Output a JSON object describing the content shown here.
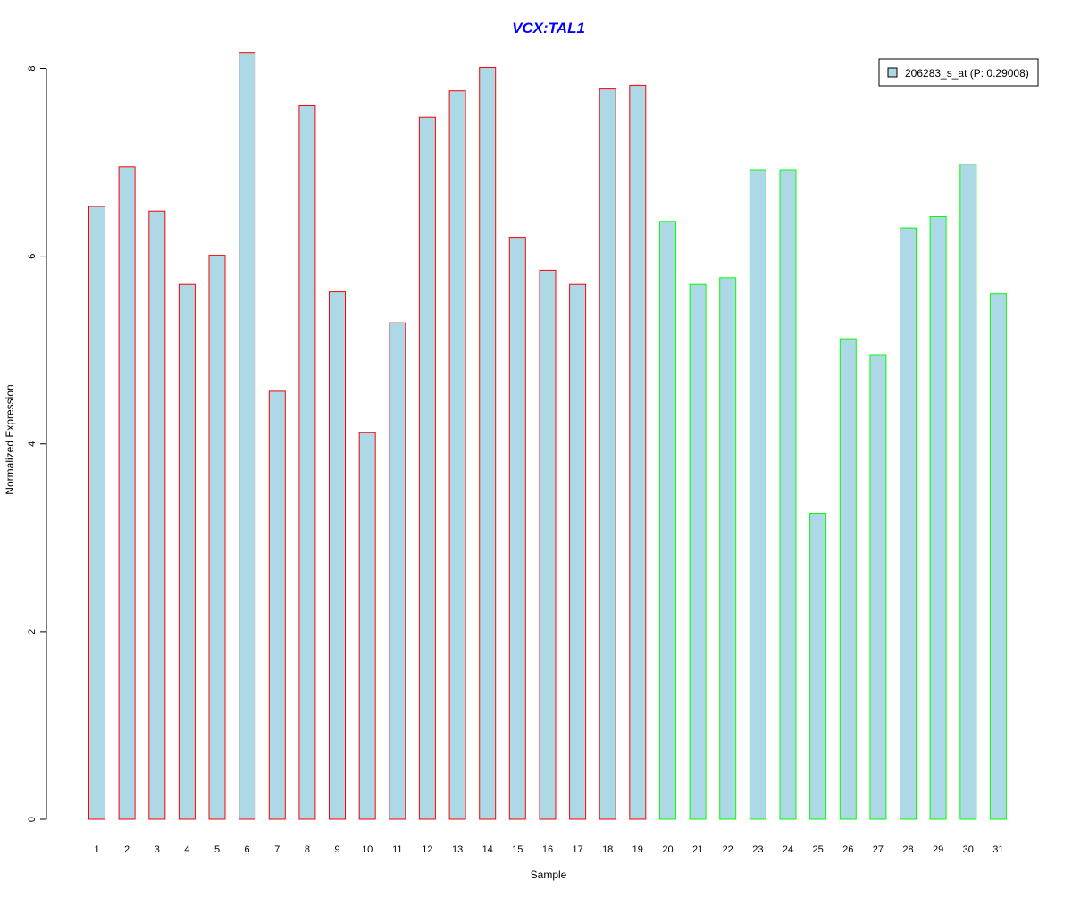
{
  "chart_data": {
    "type": "bar",
    "title": "VCX:TAL1",
    "xlabel": "Sample",
    "ylabel": "Normalized Expression",
    "ylim": [
      0,
      8.2
    ],
    "yticks": [
      "0",
      "2",
      "4",
      "6",
      "8"
    ],
    "ytick_values": [
      0,
      2,
      4,
      6,
      8
    ],
    "categories": [
      "1",
      "2",
      "3",
      "4",
      "5",
      "6",
      "7",
      "8",
      "9",
      "10",
      "11",
      "12",
      "13",
      "14",
      "15",
      "16",
      "17",
      "18",
      "19",
      "20",
      "21",
      "22",
      "23",
      "24",
      "25",
      "26",
      "27",
      "28",
      "29",
      "30",
      "31"
    ],
    "series": [
      {
        "name": "206283_s_at (P: 0.29008)",
        "values": [
          6.53,
          6.95,
          6.48,
          5.7,
          6.01,
          8.17,
          4.56,
          7.6,
          5.62,
          4.12,
          5.29,
          7.48,
          7.76,
          8.01,
          6.2,
          5.85,
          5.7,
          7.78,
          7.82,
          6.37,
          5.7,
          5.77,
          6.92,
          6.92,
          3.26,
          5.12,
          4.95,
          6.3,
          6.42,
          6.98,
          5.6
        ],
        "groups": [
          "red",
          "red",
          "red",
          "red",
          "red",
          "red",
          "red",
          "red",
          "red",
          "red",
          "red",
          "red",
          "red",
          "red",
          "red",
          "red",
          "red",
          "red",
          "red",
          "green",
          "green",
          "green",
          "green",
          "green",
          "green",
          "green",
          "green",
          "green",
          "green",
          "green",
          "green"
        ]
      }
    ],
    "legend": {
      "position": "top-right",
      "label": "206283_s_at (P: 0.29008)"
    },
    "grid": false
  },
  "colors": {
    "title": "#0000ff",
    "bar_fill": "#add8e6",
    "border_group_red": "#ff0000",
    "border_group_green": "#00ff00",
    "axis": "#000000"
  }
}
